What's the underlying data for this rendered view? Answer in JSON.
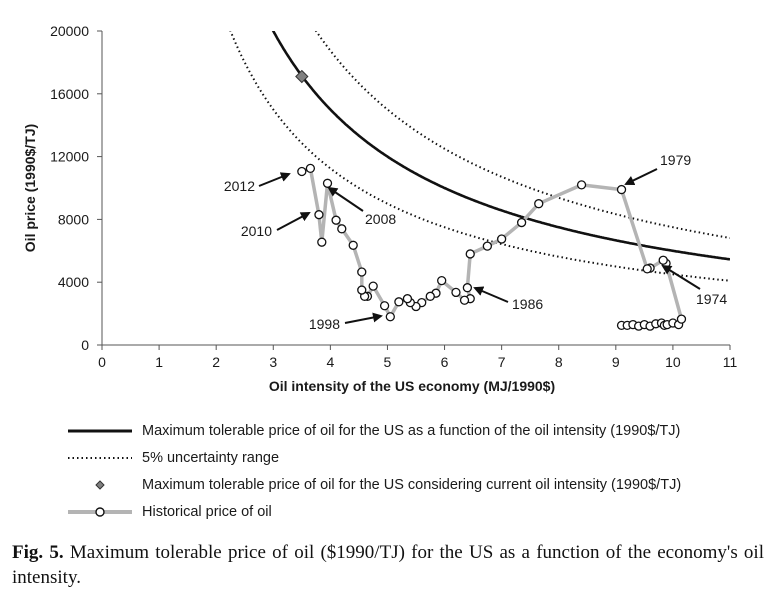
{
  "chart_data": {
    "type": "line",
    "xlabel": "Oil intensity of the US economy (MJ/1990$)",
    "ylabel": "Oil price (1990$/TJ)",
    "xlim": [
      0,
      11
    ],
    "ylim": [
      0,
      20000
    ],
    "x_ticks": [
      "0",
      "1",
      "2",
      "3",
      "4",
      "5",
      "6",
      "7",
      "8",
      "9",
      "10",
      "11"
    ],
    "y_ticks": [
      "0",
      "4000",
      "8000",
      "12000",
      "16000",
      "20000"
    ],
    "grid": false,
    "curves": [
      {
        "name": "Maximum tolerable price of oil for the US as a function of the oil intensity (1990$/TJ)",
        "k": 60000,
        "style": "solid"
      },
      {
        "name": "5% uncertainty range",
        "k_upper": 75000,
        "k_lower": 45000,
        "style": "dotted"
      }
    ],
    "current_point": {
      "name": "Maximum tolerable price of oil for the US considering current oil intensity (1990$/TJ)",
      "x": 3.5,
      "y": 17100
    },
    "historical": {
      "name": "Historical price of oil",
      "points": [
        [
          9.1,
          1250
        ],
        [
          9.2,
          1250
        ],
        [
          9.3,
          1300
        ],
        [
          9.4,
          1200
        ],
        [
          9.5,
          1300
        ],
        [
          9.6,
          1200
        ],
        [
          9.7,
          1350
        ],
        [
          9.8,
          1400
        ],
        [
          9.85,
          1250
        ],
        [
          9.9,
          1300
        ],
        [
          10.0,
          1400
        ],
        [
          10.1,
          1300
        ],
        [
          10.15,
          1650
        ],
        [
          9.88,
          5200
        ],
        [
          9.83,
          5400
        ],
        [
          9.6,
          4900
        ],
        [
          9.55,
          4850
        ],
        [
          9.1,
          9900
        ],
        [
          8.4,
          10200
        ],
        [
          7.65,
          9000
        ],
        [
          7.35,
          7800
        ],
        [
          7.0,
          6750
        ],
        [
          6.75,
          6300
        ],
        [
          6.45,
          5800
        ],
        [
          6.4,
          3650
        ],
        [
          6.45,
          2950
        ],
        [
          6.35,
          2850
        ],
        [
          6.2,
          3350
        ],
        [
          5.95,
          4100
        ],
        [
          5.85,
          3300
        ],
        [
          5.75,
          3100
        ],
        [
          5.6,
          2700
        ],
        [
          5.5,
          2450
        ],
        [
          5.4,
          2700
        ],
        [
          5.35,
          2950
        ],
        [
          5.2,
          2750
        ],
        [
          5.05,
          1800
        ],
        [
          4.95,
          2500
        ],
        [
          4.75,
          3750
        ],
        [
          4.65,
          3100
        ],
        [
          4.6,
          3100
        ],
        [
          4.55,
          3500
        ],
        [
          4.55,
          4650
        ],
        [
          4.4,
          6350
        ],
        [
          4.2,
          7400
        ],
        [
          4.1,
          7950
        ],
        [
          3.95,
          10300
        ],
        [
          3.85,
          6550
        ],
        [
          3.8,
          8300
        ],
        [
          3.65,
          11250
        ],
        [
          3.5,
          11050
        ]
      ]
    },
    "annotations": [
      "2012",
      "2010",
      "2008",
      "1998",
      "1986",
      "1979",
      "1974"
    ]
  },
  "legend": [
    {
      "label": "Maximum tolerable price of oil for the US as a function of the oil intensity (1990$/TJ)"
    },
    {
      "label": "5% uncertainty range"
    },
    {
      "label": "Maximum tolerable price of oil for the US considering current oil intensity (1990$/TJ)"
    },
    {
      "label": "Historical price of oil"
    }
  ],
  "caption": {
    "prefix": "Fig. 5.",
    "text": " Maximum tolerable price of oil ($1990/TJ) for the US as a function of the economy's oil intensity."
  }
}
